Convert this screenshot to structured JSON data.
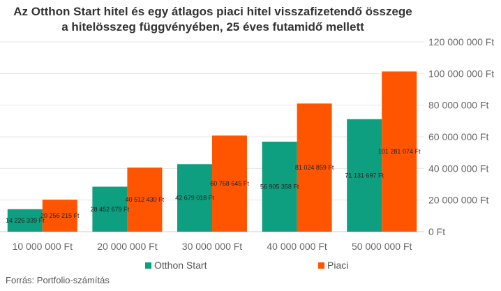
{
  "chart_data": {
    "type": "bar",
    "title_lines": [
      "Az Otthon Start hitel és egy átlagos piaci hitel visszafizetendő összege",
      "a hitelösszeg függvényében, 25 éves futamidő mellett"
    ],
    "categories": [
      "10 000 000 Ft",
      "20 000 000 Ft",
      "30 000 000 Ft",
      "40 000 000 Ft",
      "50 000 000 Ft"
    ],
    "series": [
      {
        "name": "Otthon Start",
        "color": "#0d9f7f",
        "values": [
          14226339,
          28452679,
          42679018,
          56905358,
          71131697
        ],
        "labels": [
          "14 226 339 Ft",
          "28 452 679 Ft",
          "42 679 018 Ft",
          "56 905 358 Ft",
          "71 131 697 Ft"
        ]
      },
      {
        "name": "Piaci",
        "color": "#ff5500",
        "values": [
          20256215,
          40512430,
          60768645,
          81024859,
          101281074
        ],
        "labels": [
          "20 256 215 Ft",
          "40 512 430 Ft",
          "60 768 645 Ft",
          "81 024 859 Ft",
          "101 281 074 Ft"
        ]
      }
    ],
    "ylim": [
      0,
      120000000
    ],
    "yticks": [
      0,
      20000000,
      40000000,
      60000000,
      80000000,
      100000000,
      120000000
    ],
    "ytick_labels": [
      "0 Ft",
      "20 000 000 Ft",
      "40 000 000 Ft",
      "60 000 000 Ft",
      "80 000 000 Ft",
      "100 000 000 Ft",
      "120 000 000 Ft"
    ],
    "y_axis_side": "right",
    "grid": true,
    "legend_position": "bottom"
  },
  "source": "Forrás: Portfolio-számítás"
}
